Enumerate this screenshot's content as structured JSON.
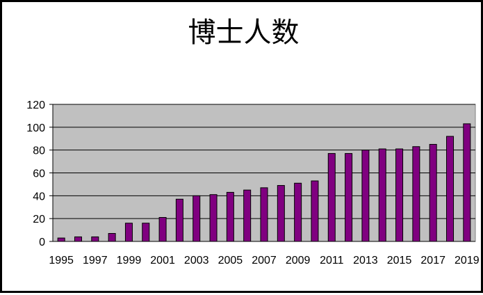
{
  "chart_data": {
    "type": "bar",
    "title": "博士人数",
    "xlabel": "",
    "ylabel": "",
    "categories": [
      "1995",
      "1996",
      "1997",
      "1998",
      "1999",
      "2000",
      "2001",
      "2002",
      "2003",
      "2004",
      "2005",
      "2006",
      "2007",
      "2008",
      "2009",
      "2010",
      "2011",
      "2012",
      "2013",
      "2014",
      "2015",
      "2016",
      "2017",
      "2018",
      "2019"
    ],
    "x_tick_labels": [
      "1995",
      "1997",
      "1999",
      "2001",
      "2003",
      "2005",
      "2007",
      "2009",
      "2011",
      "2013",
      "2015",
      "2017",
      "2019"
    ],
    "values": [
      3,
      4,
      4,
      7,
      16,
      16,
      21,
      37,
      40,
      41,
      43,
      45,
      47,
      49,
      51,
      53,
      77,
      77,
      80,
      81,
      81,
      83,
      85,
      92,
      103
    ],
    "ylim": [
      0,
      120
    ],
    "y_ticks": [
      0,
      20,
      40,
      60,
      80,
      100,
      120
    ],
    "grid": true,
    "legend": "none",
    "colors": {
      "bar_fill": "#800080",
      "bar_stroke": "#000000",
      "plot_background": "#c0c0c0",
      "gridline": "#000000"
    }
  }
}
